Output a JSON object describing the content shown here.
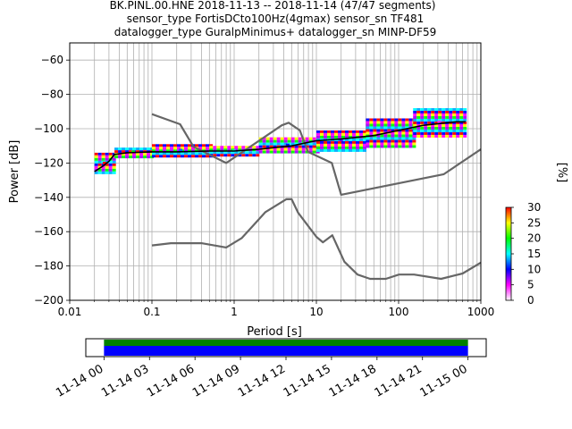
{
  "chart_data": [
    {
      "type": "heatmap",
      "title_lines": [
        "BK.PINL.00.HNE   2018-11-13 -- 2018-11-14  (47/47 segments)",
        "sensor_type FortisDCto100Hz(4gmax) sensor_sn TF481",
        "datalogger_type GuralpMinimus+ datalogger_sn MINP-DF59"
      ],
      "xlabel": "Period [s]",
      "ylabel": "Power [dB]",
      "xscale": "log",
      "xlim": [
        0.01,
        1000
      ],
      "ylim": [
        -200,
        -50
      ],
      "x_ticks": [
        {
          "value": 0.01,
          "label": "0.01"
        },
        {
          "value": 0.1,
          "label": "0.1"
        },
        {
          "value": 1,
          "label": "1"
        },
        {
          "value": 10,
          "label": "10"
        },
        {
          "value": 100,
          "label": "100"
        },
        {
          "value": 1000,
          "label": "1000"
        }
      ],
      "y_ticks": [
        {
          "value": -60,
          "label": "−60"
        },
        {
          "value": -80,
          "label": "−80"
        },
        {
          "value": -100,
          "label": "−100"
        },
        {
          "value": -120,
          "label": "−120"
        },
        {
          "value": -140,
          "label": "−140"
        },
        {
          "value": -160,
          "label": "−160"
        },
        {
          "value": -180,
          "label": "−180"
        },
        {
          "value": -200,
          "label": "−200"
        }
      ],
      "grid": true,
      "colorbar": {
        "label": "[%]",
        "range": [
          0,
          30
        ],
        "ticks": [
          "0",
          "5",
          "10",
          "15",
          "20",
          "25",
          "30"
        ],
        "colors": [
          "#ffffff",
          "#ff00ff",
          "#0000ff",
          "#00ffff",
          "#00ff00",
          "#ffff00",
          "#ff0000"
        ]
      },
      "series": [
        {
          "role": "new high noise model",
          "color": "#666666",
          "x": [
            0.1,
            0.22,
            0.32,
            0.8,
            3.8,
            4.6,
            6.3,
            7.9,
            15.4,
            20,
            354.8,
            1000
          ],
          "y": [
            -91.5,
            -97.4,
            -110.5,
            -120,
            -98,
            -96.5,
            -101,
            -113.5,
            -120,
            -138.5,
            -126.5,
            -112
          ]
        },
        {
          "role": "new low noise model",
          "color": "#666666",
          "x": [
            0.1,
            0.17,
            0.4,
            0.8,
            1.24,
            2.4,
            4.3,
            5,
            6,
            10,
            12,
            15.6,
            21.9,
            31.6,
            45,
            70,
            101,
            154,
            328,
            600,
            1000
          ],
          "y": [
            -168,
            -166.7,
            -166.7,
            -169.2,
            -163.7,
            -148.6,
            -141.1,
            -141.1,
            -149,
            -163,
            -166.2,
            -162.1,
            -177.5,
            -185,
            -187.5,
            -187.5,
            -185,
            -185,
            -187.5,
            -184.4,
            -178
          ]
        },
        {
          "role": "mean",
          "color": "#000000",
          "x": [
            0.02,
            0.025,
            0.03,
            0.035,
            0.05,
            0.1,
            0.2,
            0.5,
            1,
            2,
            5,
            10,
            20,
            50,
            100,
            200,
            500,
            650
          ],
          "y": [
            -125,
            -122,
            -119,
            -115,
            -114,
            -113.5,
            -113.5,
            -113,
            -113,
            -112,
            -110,
            -107,
            -106,
            -104,
            -101,
            -98,
            -96,
            -96
          ]
        }
      ],
      "density_bands": [
        {
          "x": [
            0.02,
            0.035
          ],
          "y": [
            -126,
            -114
          ],
          "level": 30
        },
        {
          "x": [
            0.035,
            0.1
          ],
          "y": [
            -116,
            -111
          ],
          "level": 20
        },
        {
          "x": [
            0.1,
            0.5
          ],
          "y": [
            -116,
            -109
          ],
          "level": 12
        },
        {
          "x": [
            0.5,
            2
          ],
          "y": [
            -116,
            -110
          ],
          "level": 15
        },
        {
          "x": [
            2,
            10
          ],
          "y": [
            -114,
            -105
          ],
          "level": 10
        },
        {
          "x": [
            10,
            40
          ],
          "y": [
            -112,
            -101
          ],
          "level": 8
        },
        {
          "x": [
            40,
            150
          ],
          "y": [
            -110,
            -94
          ],
          "level": 5
        },
        {
          "x": [
            150,
            650
          ],
          "y": [
            -104,
            -88
          ],
          "level": 4
        }
      ]
    },
    {
      "type": "timeline",
      "x_ticks": [
        "11-14 00",
        "11-14 03",
        "11-14 06",
        "11-14 09",
        "11-14 12",
        "11-14 15",
        "11-14 18",
        "11-14 21",
        "11-15 00"
      ],
      "bars": [
        {
          "color": "#008000",
          "start_hour": 0,
          "end_hour": 24
        },
        {
          "color": "#0000ff",
          "start_hour": 0,
          "end_hour": 24
        }
      ],
      "xlim_hours": [
        -1.2,
        25.2
      ]
    }
  ]
}
